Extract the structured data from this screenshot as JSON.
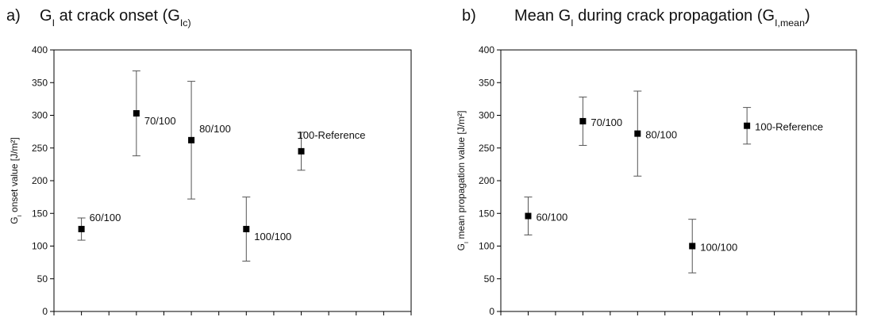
{
  "chart_data": [
    {
      "type": "scatter",
      "panel": "a)",
      "title_parts": [
        "G",
        "I",
        " at crack onset (G",
        "Ic)"
      ],
      "ylabel_parts": [
        "G",
        "I",
        " onset value [J/m²]"
      ],
      "labels": [
        "60/100",
        "70/100",
        "80/100",
        "100/100",
        "100-Reference"
      ],
      "x": [
        1,
        3,
        5,
        7,
        9
      ],
      "values": [
        126,
        303,
        262,
        126,
        245
      ],
      "error": [
        17,
        65,
        90,
        49,
        29
      ],
      "color": "#000000",
      "xlim": [
        0,
        13
      ],
      "xticks": [
        0,
        1,
        2,
        3,
        4,
        5,
        6,
        7,
        8,
        9,
        10,
        11,
        12,
        13
      ],
      "ylim": [
        0,
        400
      ],
      "yticks": [
        0,
        50,
        100,
        150,
        200,
        250,
        300,
        350,
        400
      ]
    },
    {
      "type": "scatter",
      "panel": "b)",
      "title_parts": [
        "Mean G",
        "I",
        " during crack propagation (G",
        "I,mean",
        ")"
      ],
      "ylabel_parts": [
        "G",
        "I",
        " mean propagation value [J/m²]"
      ],
      "labels": [
        "60/100",
        "70/100",
        "80/100",
        "100/100",
        "100-Reference"
      ],
      "x": [
        1,
        3,
        5,
        7,
        9
      ],
      "values": [
        146,
        291,
        272,
        100,
        284
      ],
      "error": [
        29,
        37,
        65,
        41,
        28
      ],
      "color": "#000000",
      "xlim": [
        0,
        13
      ],
      "xticks": [
        0,
        1,
        2,
        3,
        4,
        5,
        6,
        7,
        8,
        9,
        10,
        11,
        12,
        13
      ],
      "ylim": [
        0,
        400
      ],
      "yticks": [
        0,
        50,
        100,
        150,
        200,
        250,
        300,
        350,
        400
      ]
    }
  ]
}
